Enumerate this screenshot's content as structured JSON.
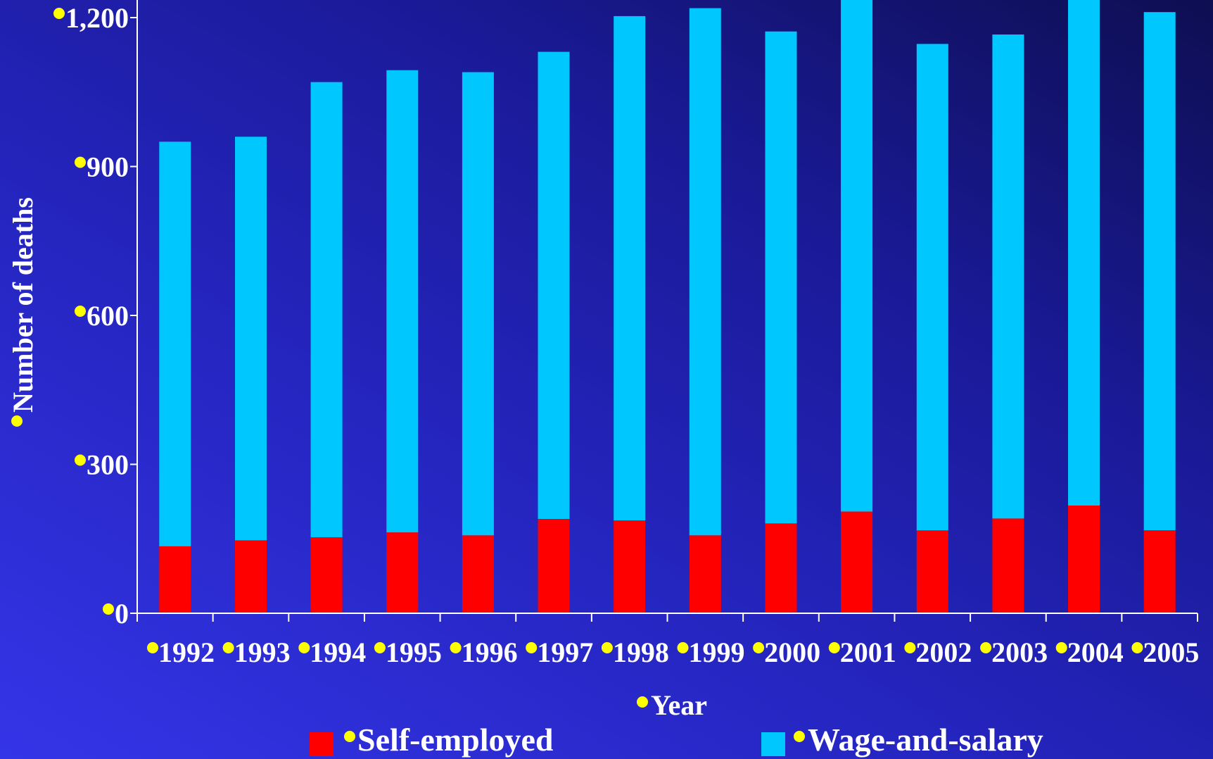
{
  "chart_data": {
    "type": "bar",
    "stacked": true,
    "xlabel": "Year",
    "ylabel": "Number of deaths",
    "ylim": [
      0,
      1200
    ],
    "yticks": [
      "0",
      "300",
      "600",
      "900",
      "1,200"
    ],
    "ytick_values": [
      0,
      300,
      600,
      900,
      1200
    ],
    "categories": [
      "1992",
      "1993",
      "1994",
      "1995",
      "1996",
      "1997",
      "1998",
      "1999",
      "2000",
      "2001",
      "2002",
      "2003",
      "2004",
      "2005"
    ],
    "series": [
      {
        "name": "Self-employed",
        "color": "#ff0000",
        "values": [
          135,
          147,
          153,
          163,
          157,
          190,
          187,
          157,
          181,
          205,
          167,
          191,
          217,
          167
        ]
      },
      {
        "name": "Wage-and-salary",
        "color": "#00c8ff",
        "values": [
          815,
          813,
          917,
          931,
          933,
          941,
          1016,
          1062,
          991,
          1050,
          980,
          975,
          1020,
          1044
        ]
      }
    ],
    "legend_position": "bottom",
    "grid": false
  },
  "colors": {
    "bullet": "#ffff00",
    "axis": "#ffffff",
    "text": "#ffffff"
  }
}
